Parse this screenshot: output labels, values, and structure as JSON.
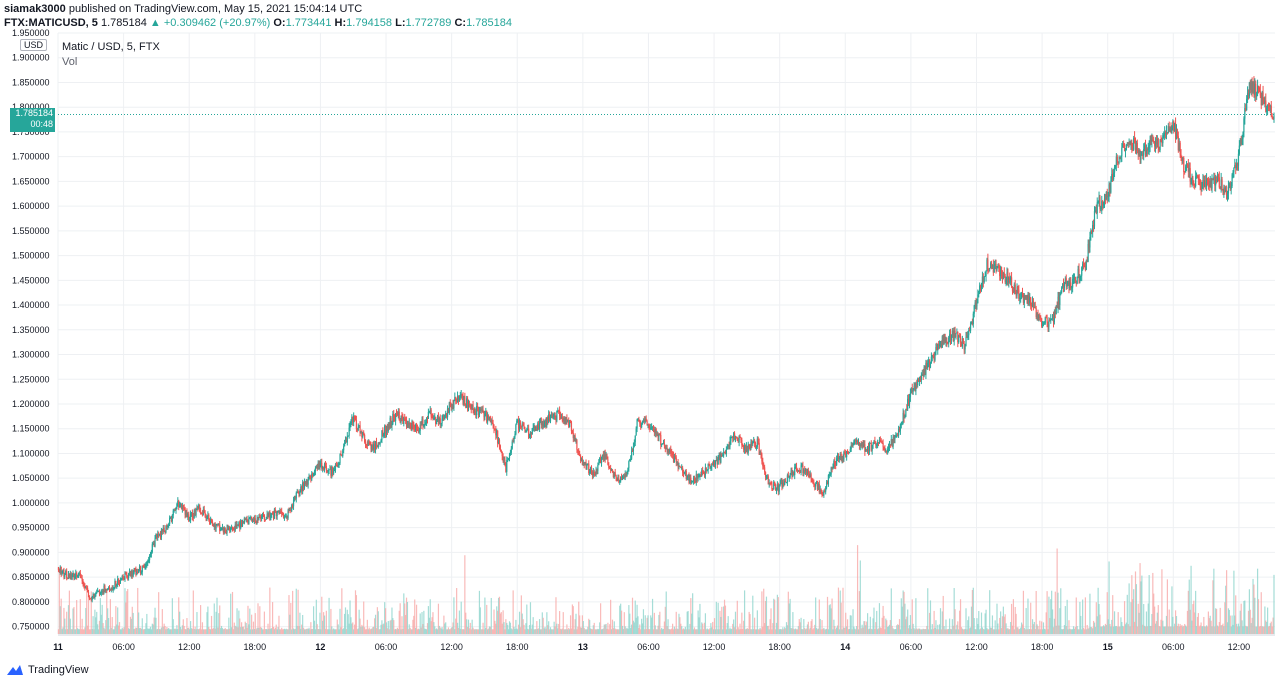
{
  "header": {
    "publisher": "siamak3000",
    "published_text": " published on TradingView.com, May 15, 2021 15:04:14 UTC",
    "symbol": "FTX:MATICUSD, 5",
    "last": "1.785184",
    "change": "+0.309462 (+20.97%)",
    "o_label": "O:",
    "o": "1.773441",
    "h_label": "H:",
    "h": "1.794158",
    "l_label": "L:",
    "l": "1.772789",
    "c_label": "C:",
    "c": "1.785184"
  },
  "legend": {
    "title": "Matic / USD, 5, FTX",
    "vol": "Vol"
  },
  "axis_badge": "USD",
  "price_tag": {
    "price": "1.785184",
    "countdown": "00:48"
  },
  "footer": {
    "brand": "TradingView"
  },
  "colors": {
    "up": "#26a69a",
    "down": "#ef5350",
    "vol_up": "#8ed4cd",
    "vol_down": "#f7a9a7",
    "grid": "#eef0f3"
  },
  "chart_data": {
    "type": "candlestick",
    "ylim": [
      0.735,
      1.95
    ],
    "yticks": [
      "1.950000",
      "1.900000",
      "1.850000",
      "1.800000",
      "1.750000",
      "1.700000",
      "1.650000",
      "1.600000",
      "1.550000",
      "1.500000",
      "1.450000",
      "1.400000",
      "1.350000",
      "1.300000",
      "1.250000",
      "1.200000",
      "1.150000",
      "1.100000",
      "1.050000",
      "1.000000",
      "0.950000",
      "0.900000",
      "0.850000",
      "0.800000",
      "0.750000"
    ],
    "xticks": [
      {
        "label": "11",
        "h": 0,
        "bold": true
      },
      {
        "label": "06:00",
        "h": 6
      },
      {
        "label": "12:00",
        "h": 12
      },
      {
        "label": "18:00",
        "h": 18
      },
      {
        "label": "12",
        "h": 24,
        "bold": true
      },
      {
        "label": "06:00",
        "h": 30
      },
      {
        "label": "12:00",
        "h": 36
      },
      {
        "label": "18:00",
        "h": 42
      },
      {
        "label": "13",
        "h": 48,
        "bold": true
      },
      {
        "label": "06:00",
        "h": 54
      },
      {
        "label": "12:00",
        "h": 60
      },
      {
        "label": "18:00",
        "h": 66
      },
      {
        "label": "14",
        "h": 72,
        "bold": true
      },
      {
        "label": "06:00",
        "h": 78
      },
      {
        "label": "12:00",
        "h": 84
      },
      {
        "label": "18:00",
        "h": 90
      },
      {
        "label": "15",
        "h": 96,
        "bold": true
      },
      {
        "label": "06:00",
        "h": 102
      },
      {
        "label": "12:00",
        "h": 108
      }
    ],
    "hours_range": [
      0,
      111.3
    ],
    "last_price": 1.785184,
    "path": [
      [
        0,
        0.87
      ],
      [
        1,
        0.85
      ],
      [
        2,
        0.855
      ],
      [
        3,
        0.805
      ],
      [
        4,
        0.825
      ],
      [
        5,
        0.83
      ],
      [
        6,
        0.85
      ],
      [
        7,
        0.86
      ],
      [
        8,
        0.87
      ],
      [
        9,
        0.93
      ],
      [
        10,
        0.95
      ],
      [
        11,
        1.0
      ],
      [
        12,
        0.97
      ],
      [
        13,
        0.99
      ],
      [
        14,
        0.96
      ],
      [
        15,
        0.95
      ],
      [
        16,
        0.945
      ],
      [
        17,
        0.96
      ],
      [
        18,
        0.965
      ],
      [
        19,
        0.97
      ],
      [
        20,
        0.98
      ],
      [
        21,
        0.975
      ],
      [
        22,
        1.02
      ],
      [
        23,
        1.05
      ],
      [
        24,
        1.08
      ],
      [
        25,
        1.06
      ],
      [
        26,
        1.1
      ],
      [
        27,
        1.17
      ],
      [
        28,
        1.13
      ],
      [
        29,
        1.11
      ],
      [
        30,
        1.15
      ],
      [
        31,
        1.18
      ],
      [
        32,
        1.16
      ],
      [
        33,
        1.15
      ],
      [
        34,
        1.18
      ],
      [
        35,
        1.16
      ],
      [
        36,
        1.2
      ],
      [
        37,
        1.21
      ],
      [
        38,
        1.19
      ],
      [
        39,
        1.18
      ],
      [
        40,
        1.15
      ],
      [
        41,
        1.07
      ],
      [
        42,
        1.16
      ],
      [
        43,
        1.14
      ],
      [
        44,
        1.16
      ],
      [
        45,
        1.17
      ],
      [
        46,
        1.18
      ],
      [
        47,
        1.15
      ],
      [
        48,
        1.08
      ],
      [
        49,
        1.06
      ],
      [
        50,
        1.1
      ],
      [
        51,
        1.05
      ],
      [
        52,
        1.05
      ],
      [
        53,
        1.16
      ],
      [
        54,
        1.16
      ],
      [
        55,
        1.13
      ],
      [
        56,
        1.1
      ],
      [
        57,
        1.07
      ],
      [
        58,
        1.04
      ],
      [
        59,
        1.06
      ],
      [
        60,
        1.08
      ],
      [
        61,
        1.1
      ],
      [
        62,
        1.14
      ],
      [
        63,
        1.11
      ],
      [
        64,
        1.12
      ],
      [
        65,
        1.04
      ],
      [
        66,
        1.03
      ],
      [
        67,
        1.06
      ],
      [
        68,
        1.07
      ],
      [
        69,
        1.05
      ],
      [
        70,
        1.02
      ],
      [
        71,
        1.08
      ],
      [
        72,
        1.1
      ],
      [
        73,
        1.12
      ],
      [
        74,
        1.11
      ],
      [
        75,
        1.12
      ],
      [
        76,
        1.11
      ],
      [
        77,
        1.15
      ],
      [
        78,
        1.22
      ],
      [
        79,
        1.26
      ],
      [
        80,
        1.29
      ],
      [
        81,
        1.33
      ],
      [
        82,
        1.34
      ],
      [
        83,
        1.32
      ],
      [
        84,
        1.4
      ],
      [
        85,
        1.48
      ],
      [
        86,
        1.47
      ],
      [
        87,
        1.45
      ],
      [
        88,
        1.42
      ],
      [
        89,
        1.41
      ],
      [
        90,
        1.36
      ],
      [
        91,
        1.37
      ],
      [
        92,
        1.44
      ],
      [
        93,
        1.45
      ],
      [
        94,
        1.48
      ],
      [
        95,
        1.6
      ],
      [
        96,
        1.62
      ],
      [
        97,
        1.7
      ],
      [
        98,
        1.74
      ],
      [
        99,
        1.7
      ],
      [
        100,
        1.72
      ],
      [
        101,
        1.73
      ],
      [
        102,
        1.77
      ],
      [
        103,
        1.68
      ],
      [
        104,
        1.65
      ],
      [
        105,
        1.64
      ],
      [
        106,
        1.66
      ],
      [
        107,
        1.62
      ],
      [
        108,
        1.7
      ],
      [
        109,
        1.85
      ],
      [
        110,
        1.82
      ],
      [
        111,
        1.785
      ]
    ],
    "volume_ylim": [
      0,
      0.3
    ]
  }
}
